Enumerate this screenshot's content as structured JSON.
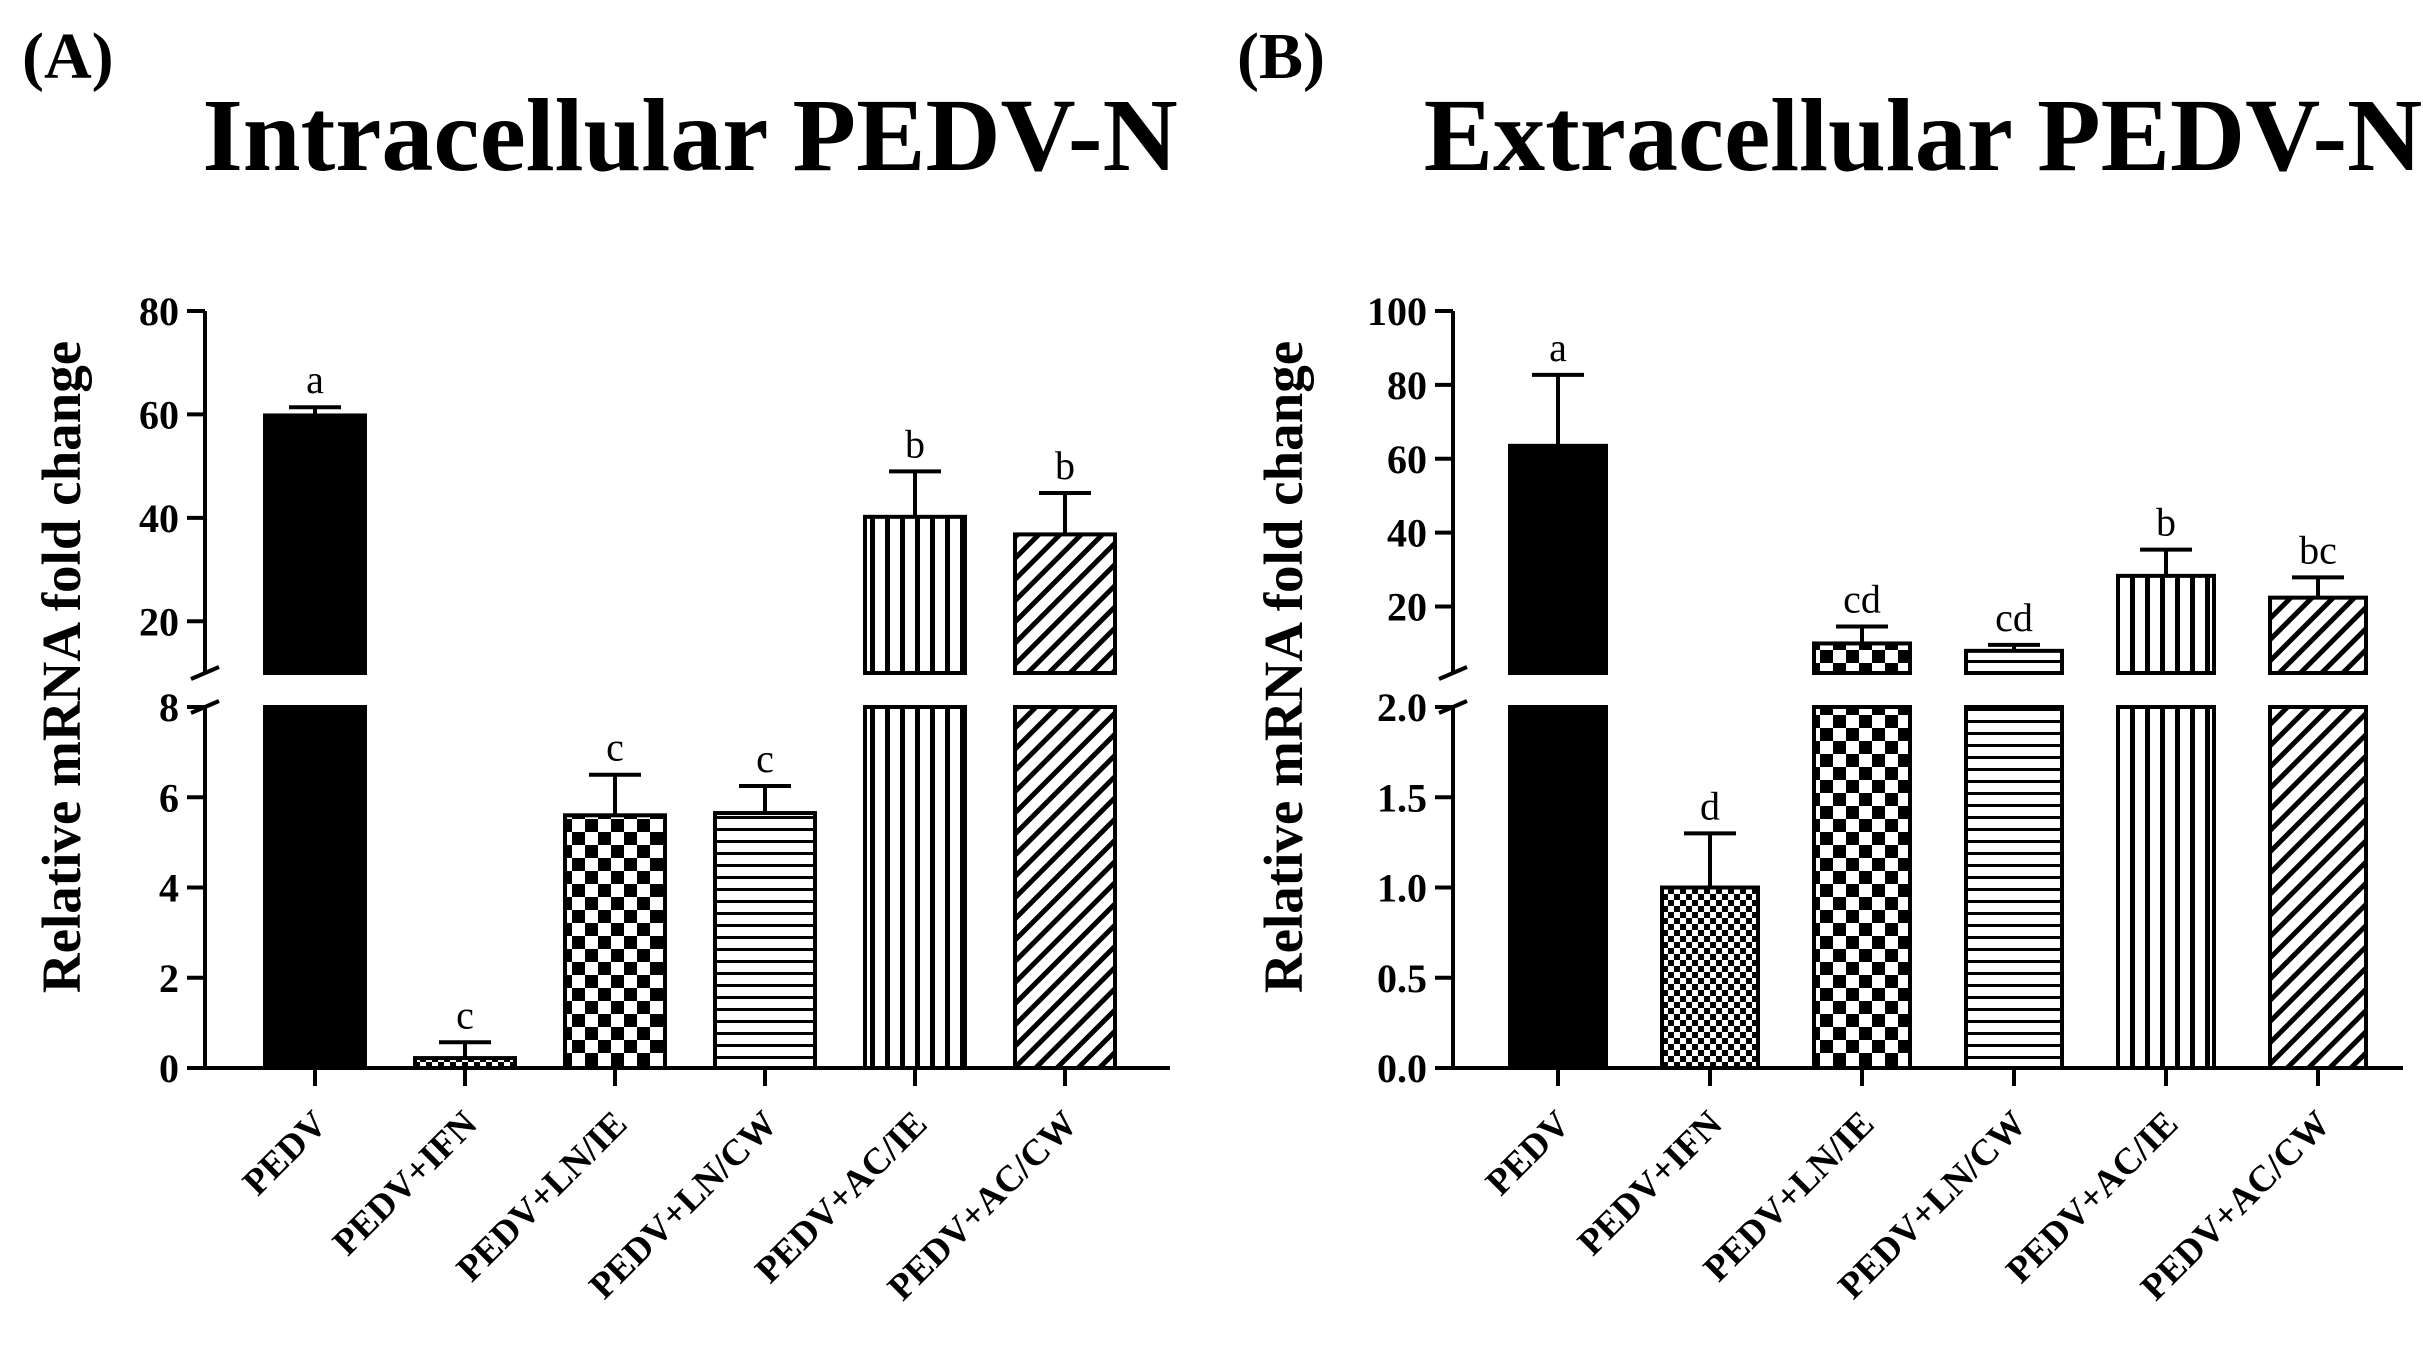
{
  "chart_data": [
    {
      "type": "bar",
      "panel_label": "(A)",
      "title": "Intracellular PEDV-N",
      "xlabel": "",
      "ylabel": "Relative mRNA fold change",
      "categories": [
        "PEDV",
        "PEDV+IFN",
        "PEDV+LN/IE",
        "PEDV+LN/CW",
        "PEDV+AC/IE",
        "PEDV+AC/CW"
      ],
      "values": [
        59.8,
        0.22,
        5.6,
        5.65,
        40.2,
        36.8
      ],
      "errors": [
        1.6,
        0.35,
        0.9,
        0.6,
        8.8,
        8.0
      ],
      "significance": [
        "a",
        "c",
        "c",
        "c",
        "b",
        "b"
      ],
      "patterns": [
        "solid",
        "fine-checker",
        "checker",
        "horizontal",
        "vertical",
        "diagonal"
      ],
      "axis_break": true,
      "lower_segment": {
        "ylim": [
          0,
          8
        ],
        "ticks": [
          "0",
          "2",
          "4",
          "6",
          "8"
        ]
      },
      "upper_segment": {
        "ylim": [
          10,
          80
        ],
        "ticks": [
          "20",
          "40",
          "60",
          "80"
        ]
      },
      "grid": false,
      "legend": "none"
    },
    {
      "type": "bar",
      "panel_label": "(B)",
      "title": "Extracellular PEDV-N",
      "xlabel": "",
      "ylabel": "Relative mRNA fold change",
      "categories": [
        "PEDV",
        "PEDV+IFN",
        "PEDV+LN/IE",
        "PEDV+LN/CW",
        "PEDV+AC/IE",
        "PEDV+AC/CW"
      ],
      "values": [
        63.5,
        1.0,
        10.0,
        8.0,
        28.3,
        22.4
      ],
      "errors": [
        19.2,
        0.3,
        4.6,
        1.6,
        7.1,
        5.5
      ],
      "significance": [
        "a",
        "d",
        "cd",
        "cd",
        "b",
        "bc"
      ],
      "patterns": [
        "solid",
        "fine-checker",
        "checker",
        "horizontal",
        "vertical",
        "diagonal"
      ],
      "axis_break": true,
      "lower_segment": {
        "ylim": [
          0,
          2
        ],
        "ticks": [
          "0.0",
          "0.5",
          "1.0",
          "1.5",
          "2.0"
        ]
      },
      "upper_segment": {
        "ylim": [
          2,
          100
        ],
        "ticks": [
          "20",
          "40",
          "60",
          "80",
          "100"
        ]
      },
      "grid": false,
      "legend": "none"
    }
  ]
}
